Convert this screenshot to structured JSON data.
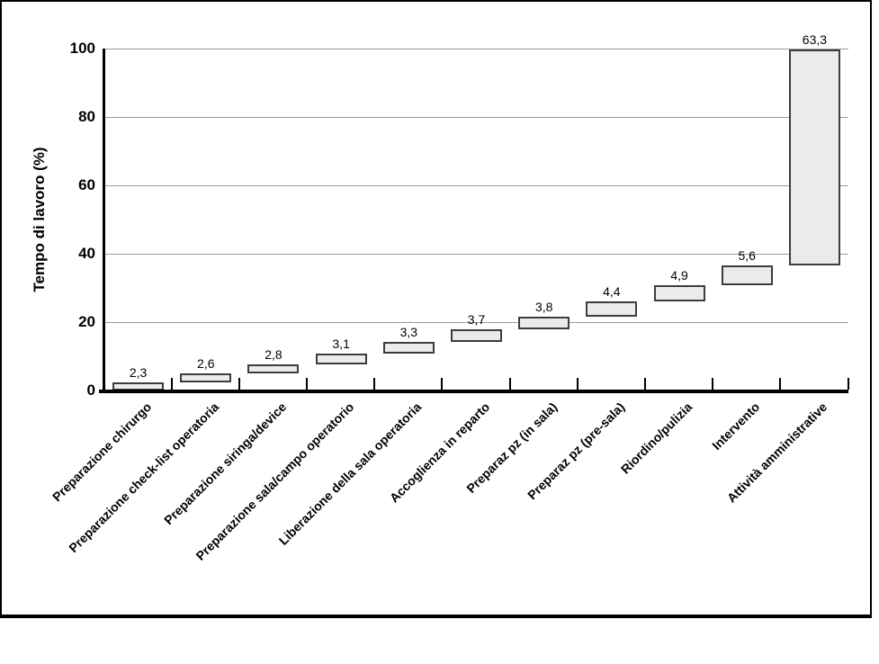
{
  "chart_data": {
    "type": "bar",
    "subtype": "waterfall",
    "title": "",
    "xlabel": "",
    "ylabel": "Tempo di lavoro (%)",
    "ylim": [
      0,
      100
    ],
    "yticks": [
      0,
      20,
      40,
      60,
      80,
      100
    ],
    "grid": "horizontal gridlines at each y tick",
    "legend": "none",
    "categories": [
      "Preparazione chirurgo",
      "Preparazione check-list operatoria",
      "Preparazione siringa/device",
      "Preparazione sala/campo operatorio",
      "Liberazione della sala operatoria",
      "Accoglienza in reparto",
      "Preparaz pz (in sala)",
      "Preparaz pz (pre-sala)",
      "Riordino/pulizia",
      "Intervento",
      "Attività amministrative"
    ],
    "values": [
      2.3,
      2.6,
      2.8,
      3.1,
      3.3,
      3.7,
      3.8,
      4.4,
      4.9,
      5.6,
      63.3
    ],
    "value_labels": [
      "2,3",
      "2,6",
      "2,8",
      "3,1",
      "3,3",
      "3,7",
      "3,8",
      "4,4",
      "4,9",
      "5,6",
      "63,3"
    ],
    "stacking": "each bar starts at the cumulative total of the previous bars",
    "colors": {
      "bar_fill": "#ebebeb",
      "bar_border": "#3d3d3d",
      "gridline": "#9b9b9b",
      "axis": "#000000",
      "background": "#ffffff",
      "text": "#000000"
    }
  }
}
